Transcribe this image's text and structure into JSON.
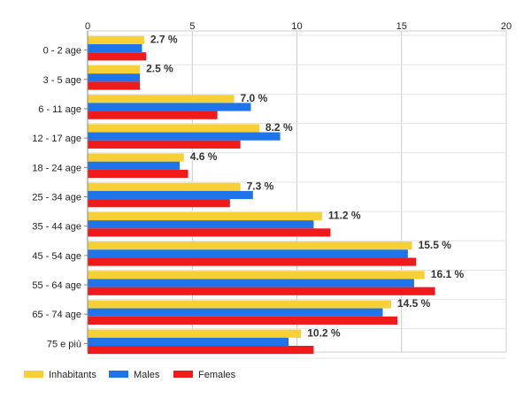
{
  "chart_data": {
    "type": "bar",
    "orientation": "horizontal",
    "categories": [
      "0 - 2 age",
      "3 - 5 age",
      "6 - 11 age",
      "12 - 17 age",
      "18 - 24 age",
      "25 - 34 age",
      "35 - 44 age",
      "45 - 54 age",
      "55 - 64 age",
      "65 - 74 age",
      "75 e più"
    ],
    "series": [
      {
        "name": "Inhabitants",
        "color": "#f7d036",
        "values": [
          2.7,
          2.5,
          7.0,
          8.2,
          4.6,
          7.3,
          11.2,
          15.5,
          16.1,
          14.5,
          10.2
        ]
      },
      {
        "name": "Males",
        "color": "#1e74e8",
        "values": [
          2.6,
          2.5,
          7.8,
          9.2,
          4.4,
          7.9,
          10.8,
          15.3,
          15.6,
          14.1,
          9.6
        ]
      },
      {
        "name": "Females",
        "color": "#f01a1a",
        "values": [
          2.8,
          2.5,
          6.2,
          7.3,
          4.8,
          6.8,
          11.6,
          15.7,
          16.6,
          14.8,
          10.8
        ]
      }
    ],
    "data_labels": [
      "2.7 %",
      "2.5 %",
      "7.0 %",
      "8.2 %",
      "4.6 %",
      "7.3 %",
      "11.2 %",
      "15.5 %",
      "16.1 %",
      "14.5 %",
      "10.2 %"
    ],
    "x_ticks": [
      0,
      5,
      10,
      15,
      20
    ],
    "xlim": [
      0,
      20
    ],
    "grid": true,
    "legend_position": "bottom"
  }
}
